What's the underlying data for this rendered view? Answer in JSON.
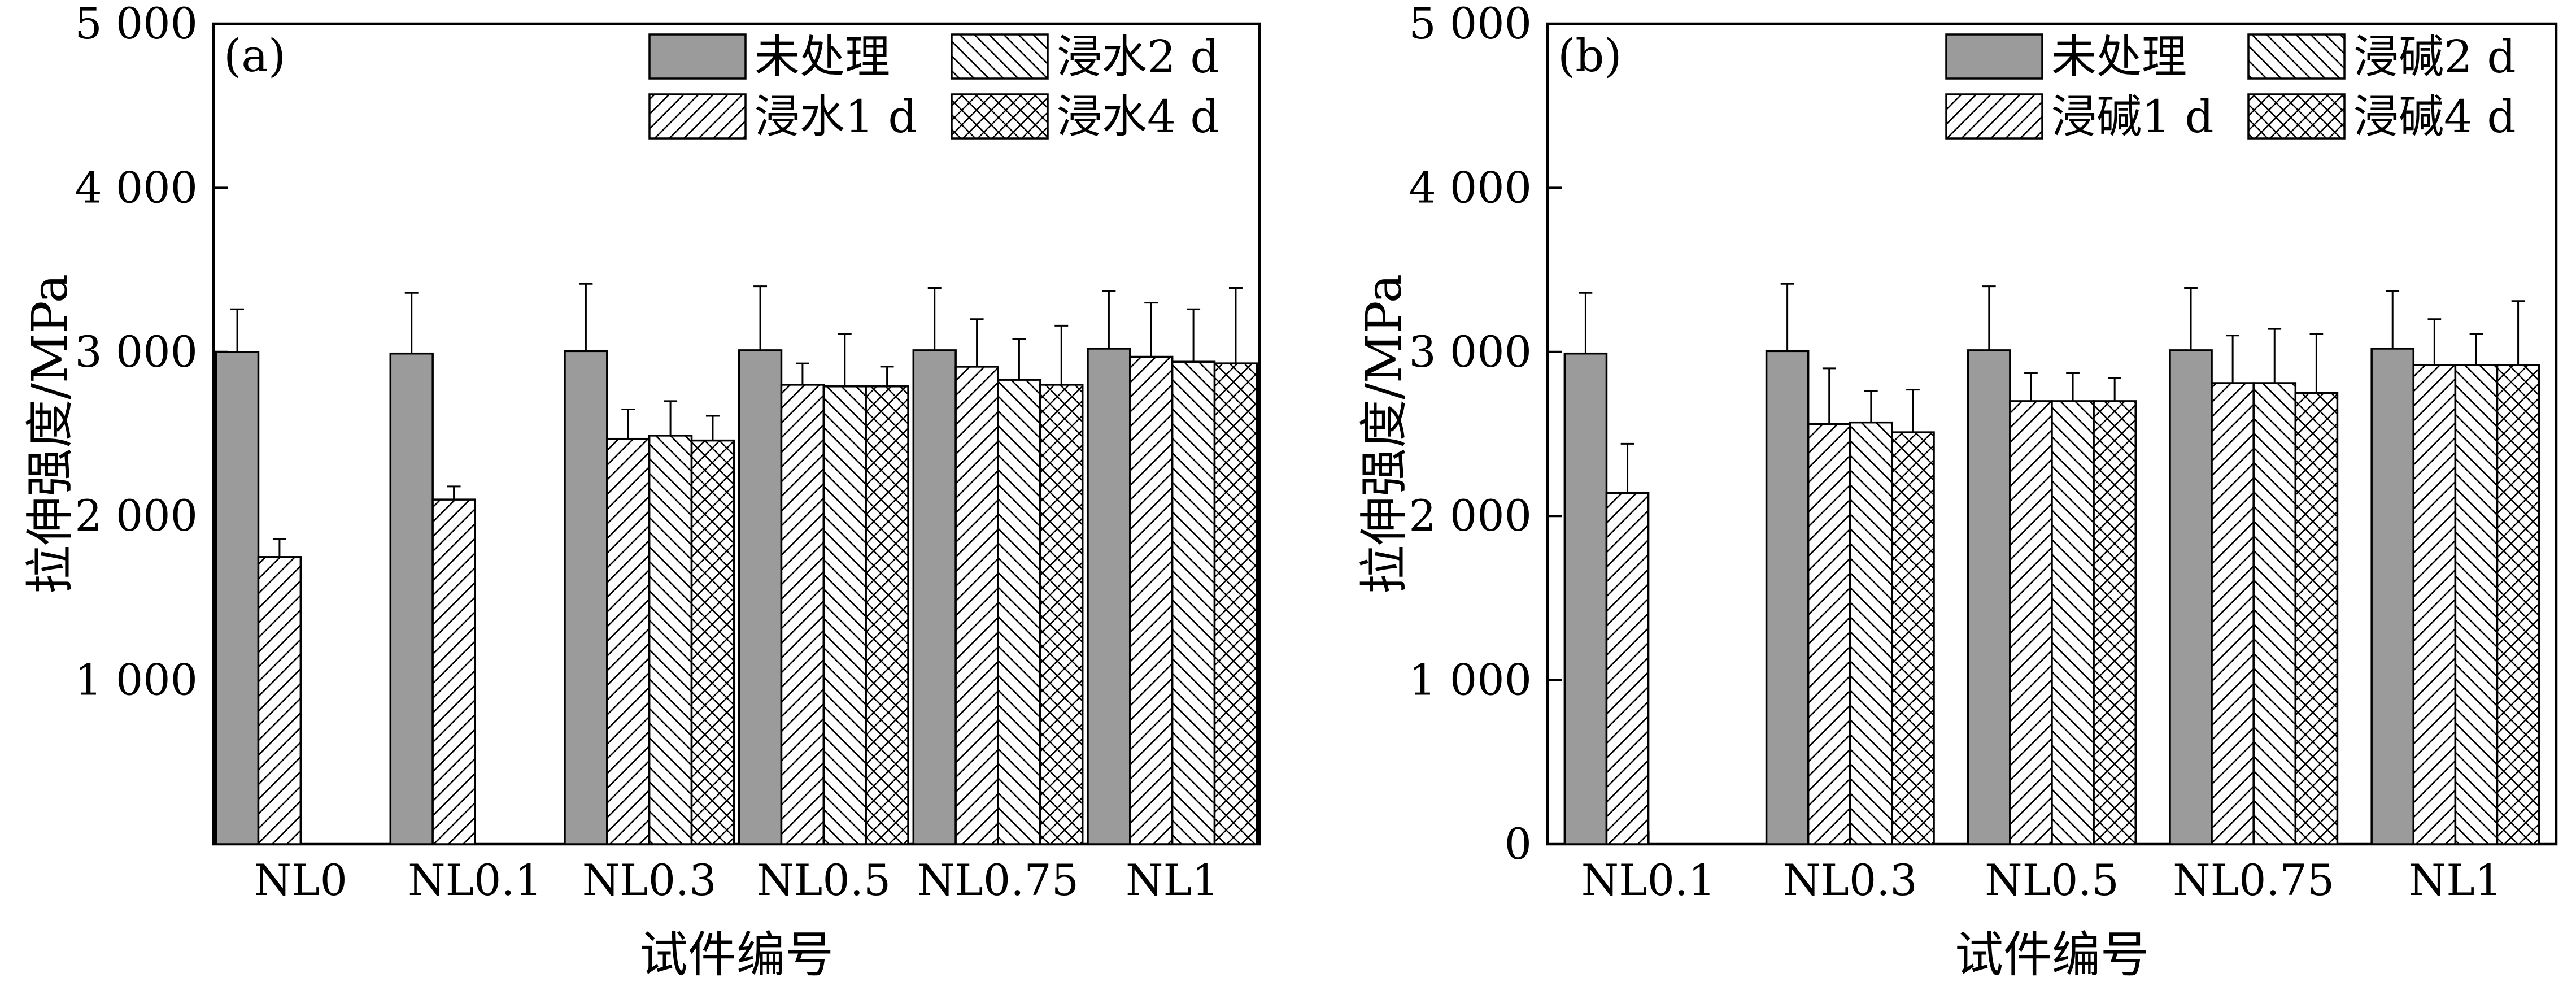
{
  "figure": {
    "colors": {
      "untreated": "#9b9b9b",
      "edge": "#000000",
      "hatch": "#000000"
    }
  },
  "chart_data": [
    {
      "type": "bar",
      "panel_label": "(a)",
      "xlabel": "试件编号",
      "ylabel": "拉伸强度/MPa",
      "ylim": [
        0,
        5000
      ],
      "yticks": [
        1000,
        2000,
        3000,
        4000,
        5000
      ],
      "ytick_labels": [
        "1 000",
        "2 000",
        "3 000",
        "4 000",
        "5 000"
      ],
      "categories": [
        "NL0",
        "NL0.1",
        "NL0.3",
        "NL0.5",
        "NL0.75",
        "NL1"
      ],
      "legend": {
        "position": "top-right",
        "columns": 2
      },
      "series": [
        {
          "name": "未处理",
          "pattern": "solid-gray",
          "values": [
            3000,
            2990,
            3005,
            3010,
            3010,
            3020
          ],
          "errors": [
            260,
            370,
            410,
            390,
            380,
            350
          ]
        },
        {
          "name": "浸水1 d",
          "pattern": "diag-up",
          "values": [
            1750,
            2100,
            2470,
            2800,
            2910,
            2970
          ],
          "errors": [
            110,
            80,
            180,
            130,
            290,
            330
          ]
        },
        {
          "name": "浸水2 d",
          "pattern": "diag-down",
          "values": [
            null,
            null,
            2490,
            2790,
            2830,
            2940
          ],
          "errors": [
            null,
            null,
            210,
            320,
            250,
            320
          ]
        },
        {
          "name": "浸水4 d",
          "pattern": "crosshatch",
          "values": [
            null,
            null,
            2460,
            2790,
            2800,
            2930
          ],
          "errors": [
            null,
            null,
            150,
            120,
            360,
            460
          ]
        }
      ]
    },
    {
      "type": "bar",
      "panel_label": "(b)",
      "xlabel": "试件编号",
      "ylabel": "拉伸强度/MPa",
      "ylim": [
        0,
        5000
      ],
      "yticks": [
        0,
        1000,
        2000,
        3000,
        4000,
        5000
      ],
      "ytick_labels": [
        "0",
        "1 000",
        "2 000",
        "3 000",
        "4 000",
        "5 000"
      ],
      "categories": [
        "NL0.1",
        "NL0.3",
        "NL0.5",
        "NL0.75",
        "NL1"
      ],
      "legend": {
        "position": "top-right",
        "columns": 2
      },
      "series": [
        {
          "name": "未处理",
          "pattern": "solid-gray",
          "values": [
            2990,
            3005,
            3010,
            3010,
            3020
          ],
          "errors": [
            370,
            410,
            390,
            380,
            350
          ]
        },
        {
          "name": "浸碱1 d",
          "pattern": "diag-up",
          "values": [
            2140,
            2560,
            2700,
            2810,
            2920
          ],
          "errors": [
            300,
            340,
            170,
            290,
            280
          ]
        },
        {
          "name": "浸碱2 d",
          "pattern": "diag-down",
          "values": [
            null,
            2570,
            2700,
            2810,
            2920
          ],
          "errors": [
            null,
            190,
            170,
            330,
            190
          ]
        },
        {
          "name": "浸碱4 d",
          "pattern": "crosshatch",
          "values": [
            null,
            2510,
            2700,
            2750,
            2920
          ],
          "errors": [
            null,
            260,
            140,
            360,
            390
          ]
        }
      ]
    }
  ]
}
